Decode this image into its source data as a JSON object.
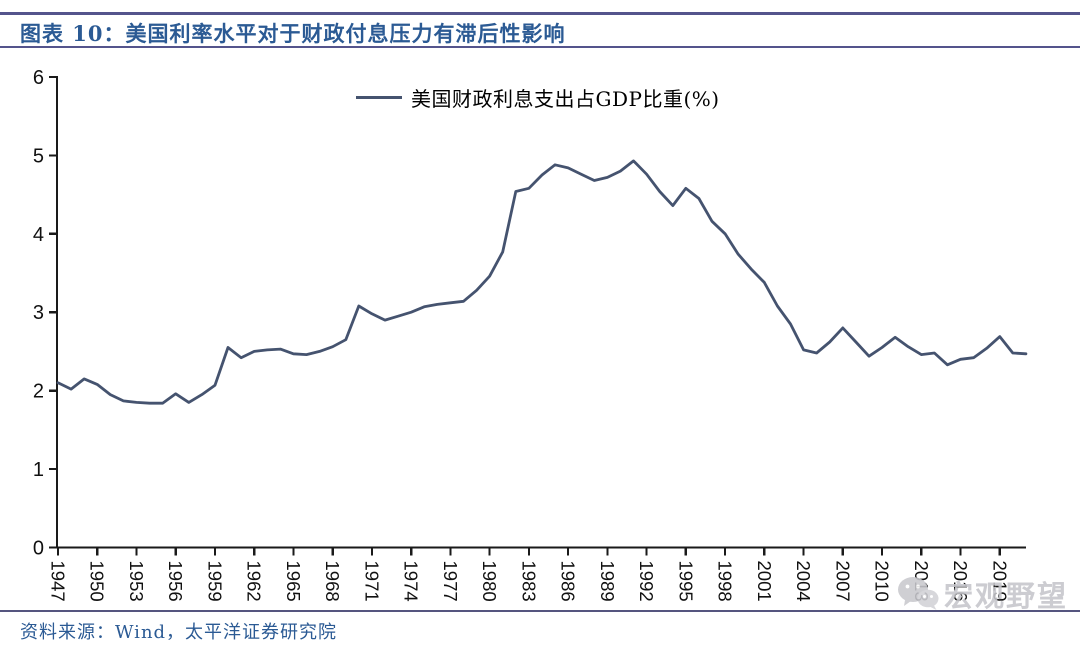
{
  "header": {
    "title": "图表 10：美国利率水平对于财政付息压力有滞后性影响"
  },
  "footer": {
    "source": "资料来源：Wind，太平洋证券研究院",
    "watermark": "宏观野望"
  },
  "colors": {
    "line": "#45536F",
    "accent_text": "#2B5A94",
    "rule_top": "#54548C",
    "rule_bottom": "#55557F",
    "axis": "#1A1A1A",
    "watermark": "#C6C6CB"
  },
  "chart_data": {
    "type": "line",
    "title": "",
    "xlabel": "",
    "ylabel": "",
    "legend_label": "美国财政利息支出占GDP比重(%)",
    "legend_position": "top-center",
    "grid": false,
    "ylim": [
      0,
      6
    ],
    "yticks": [
      0,
      1,
      2,
      3,
      4,
      5,
      6
    ],
    "xtick_labels": [
      "1947",
      "1950",
      "1953",
      "1956",
      "1959",
      "1962",
      "1965",
      "1968",
      "1971",
      "1974",
      "1977",
      "1980",
      "1983",
      "1986",
      "1989",
      "1992",
      "1995",
      "1998",
      "2001",
      "2004",
      "2007",
      "2010",
      "2013",
      "2016",
      "2019"
    ],
    "x_range": [
      1947,
      2021
    ],
    "series": [
      {
        "name": "美国财政利息支出占GDP比重(%)",
        "x": [
          1947,
          1948,
          1949,
          1950,
          1951,
          1952,
          1953,
          1954,
          1955,
          1956,
          1957,
          1958,
          1959,
          1960,
          1961,
          1962,
          1963,
          1964,
          1965,
          1966,
          1967,
          1968,
          1969,
          1970,
          1971,
          1972,
          1973,
          1974,
          1975,
          1976,
          1977,
          1978,
          1979,
          1980,
          1981,
          1982,
          1983,
          1984,
          1985,
          1986,
          1987,
          1988,
          1989,
          1990,
          1991,
          1992,
          1993,
          1994,
          1995,
          1996,
          1997,
          1998,
          1999,
          2000,
          2001,
          2002,
          2003,
          2004,
          2005,
          2006,
          2007,
          2008,
          2009,
          2010,
          2011,
          2012,
          2013,
          2014,
          2015,
          2016,
          2017,
          2018,
          2019,
          2020,
          2021
        ],
        "values": [
          2.1,
          2.02,
          2.15,
          2.08,
          1.95,
          1.87,
          1.85,
          1.84,
          1.84,
          1.96,
          1.85,
          1.95,
          2.07,
          2.55,
          2.42,
          2.5,
          2.52,
          2.53,
          2.47,
          2.46,
          2.5,
          2.56,
          2.65,
          3.08,
          2.98,
          2.9,
          2.95,
          3.0,
          3.07,
          3.1,
          3.12,
          3.14,
          3.28,
          3.46,
          3.77,
          4.54,
          4.58,
          4.75,
          4.88,
          4.84,
          4.76,
          4.68,
          4.72,
          4.8,
          4.93,
          4.76,
          4.54,
          4.36,
          4.58,
          4.45,
          4.16,
          4.0,
          3.74,
          3.55,
          3.38,
          3.08,
          2.85,
          2.52,
          2.48,
          2.62,
          2.8,
          2.62,
          2.44,
          2.55,
          2.68,
          2.56,
          2.46,
          2.48,
          2.33,
          2.4,
          2.42,
          2.54,
          2.69,
          2.48,
          2.47
        ]
      }
    ]
  }
}
